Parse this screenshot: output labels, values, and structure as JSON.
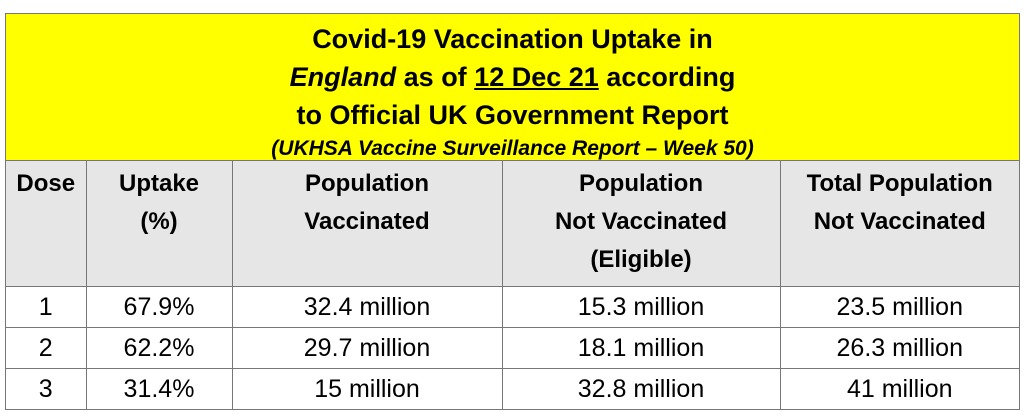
{
  "title": {
    "line1": "Covid-19 Vaccination Uptake in",
    "line2_italic": "England",
    "line2_mid": " as of ",
    "line2_underline": "12 Dec 21",
    "line2_end": " according",
    "line3": "to Official UK Government Report",
    "subtitle": "(UKHSA Vaccine Surveillance Report – Week 50)"
  },
  "columns": [
    "Dose",
    "Uptake\n(%)",
    "Population\nVaccinated",
    "Population\nNot Vaccinated\n(Eligible)",
    "Total Population\nNot Vaccinated"
  ],
  "rows": [
    [
      "1",
      "67.9%",
      "32.4 million",
      "15.3 million",
      "23.5 million"
    ],
    [
      "2",
      "62.2%",
      "29.7 million",
      "18.1 million",
      "26.3 million"
    ],
    [
      "3",
      "31.4%",
      "15 million",
      "32.8 million",
      "41 million"
    ]
  ],
  "colors": {
    "title_bg": "#ffff00",
    "header_bg": "#e6e6e6"
  }
}
